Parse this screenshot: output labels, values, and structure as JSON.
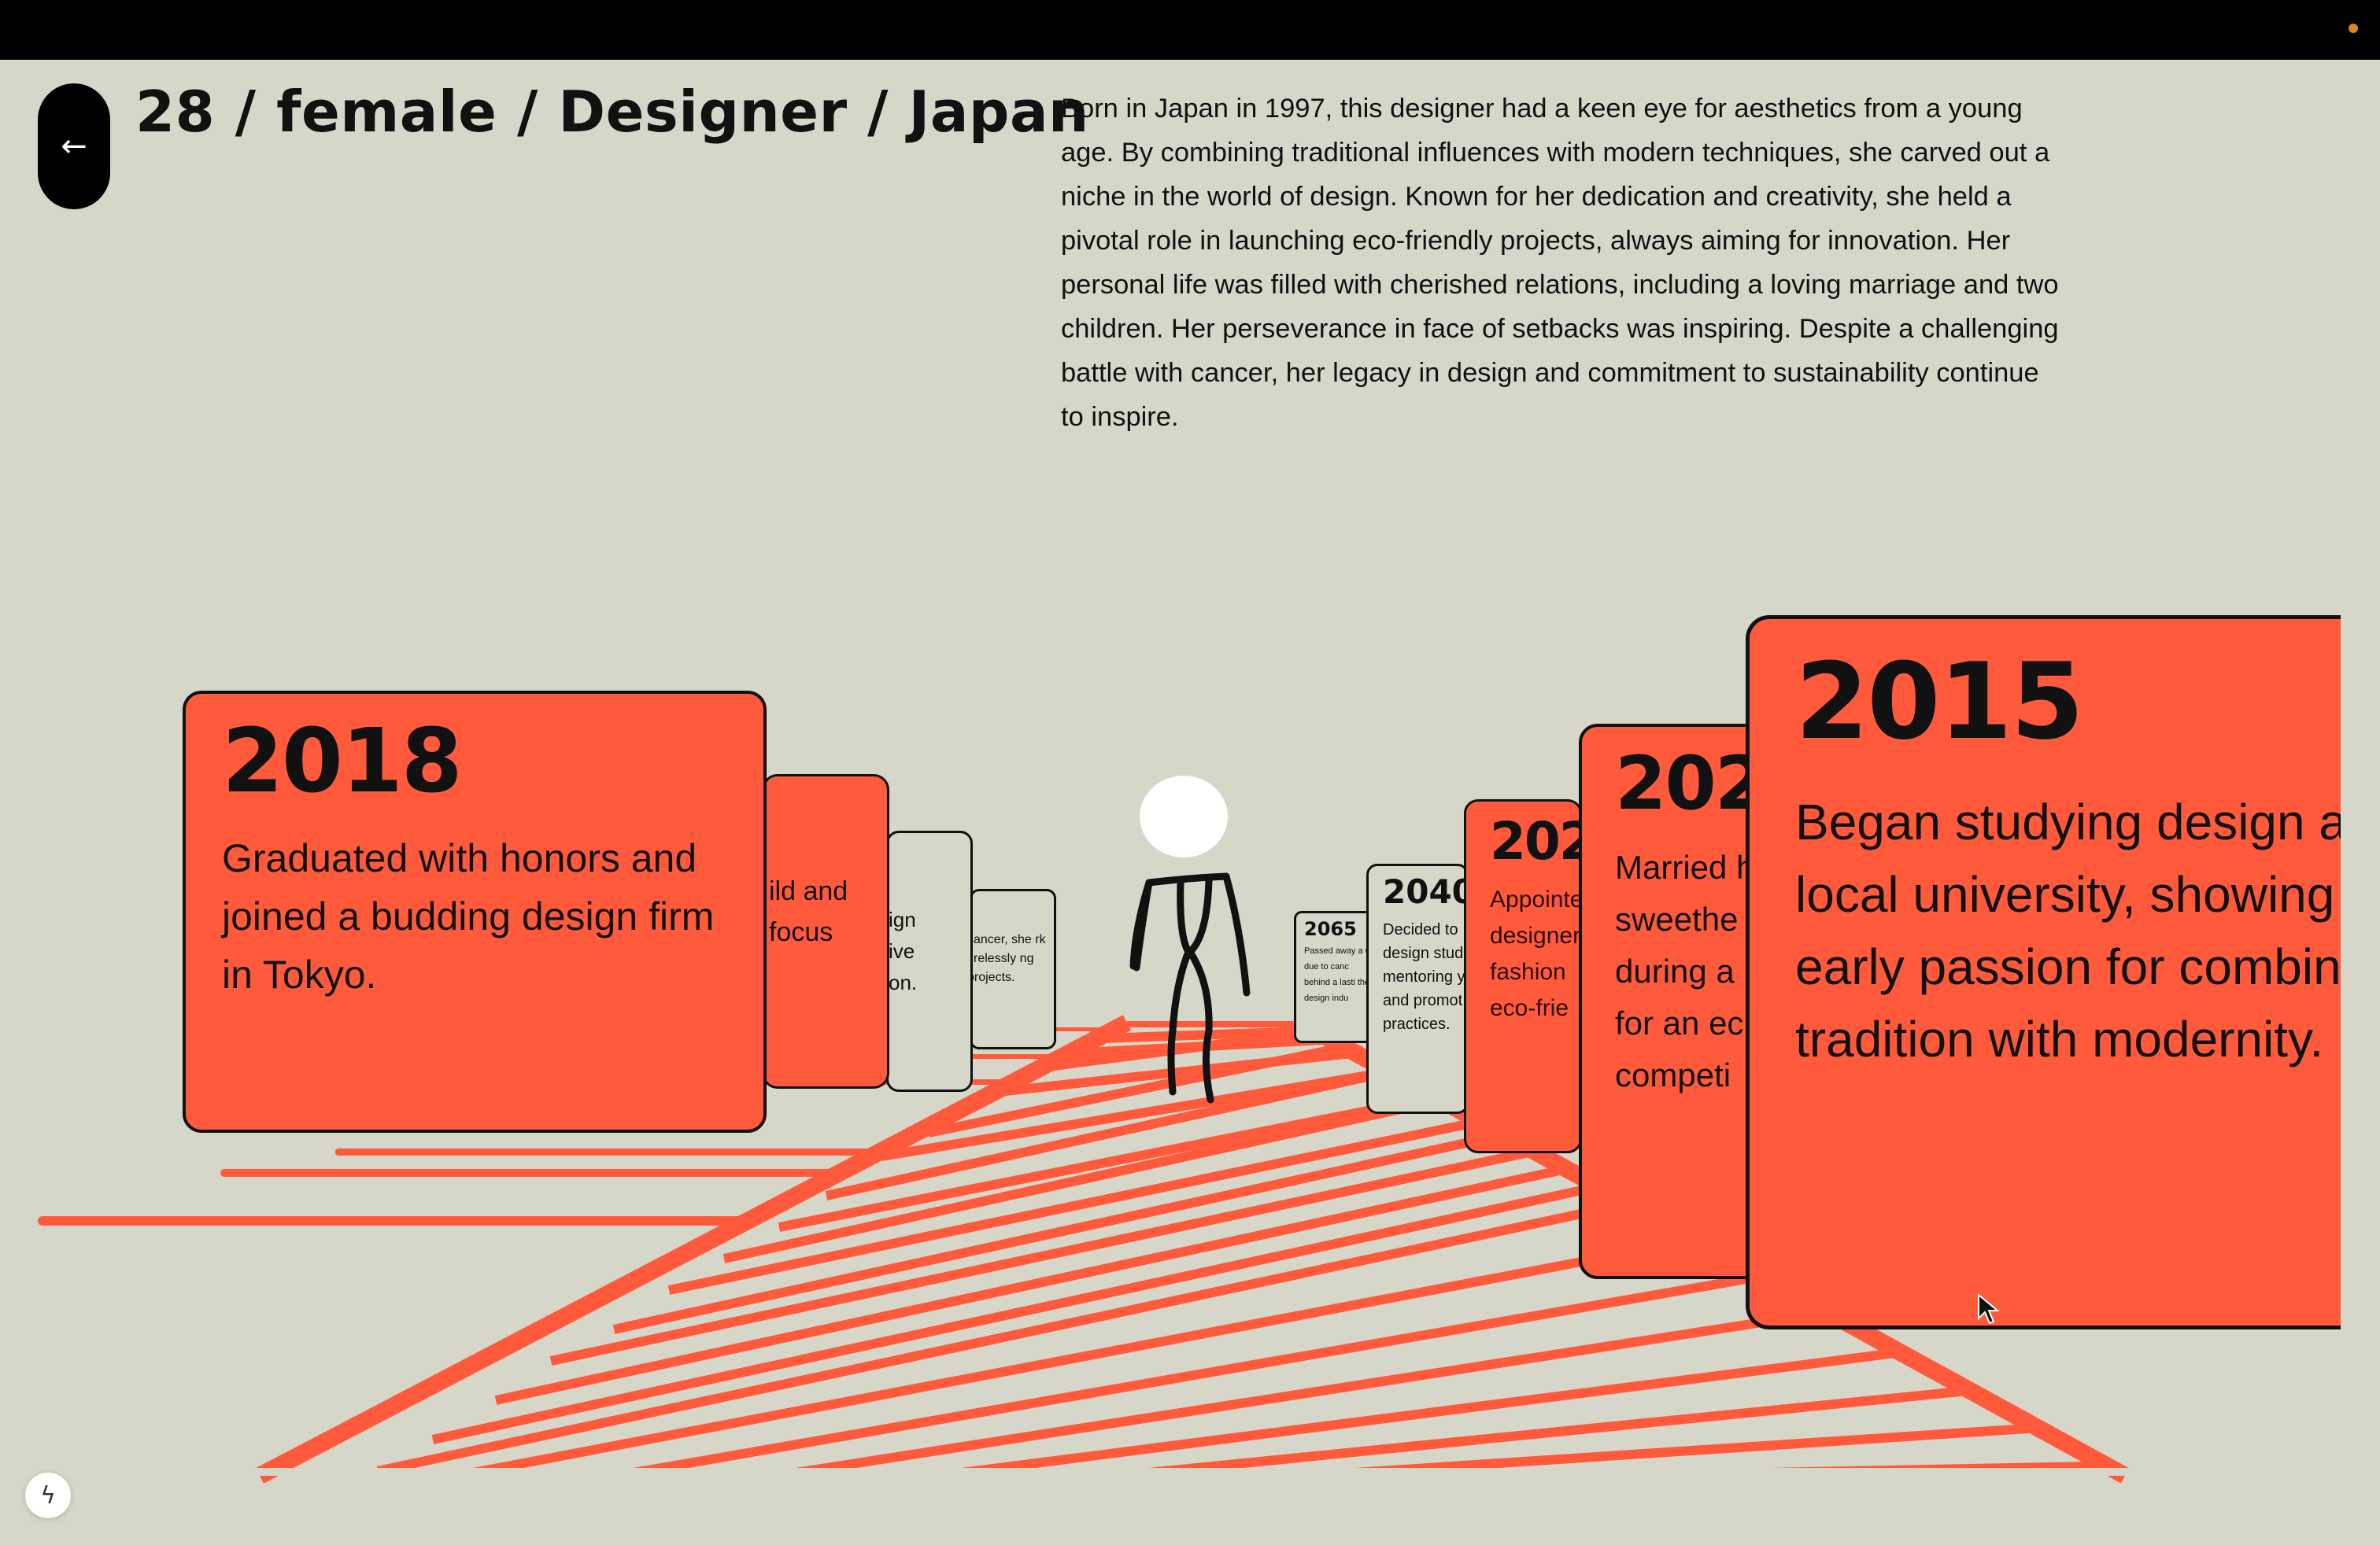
{
  "header": {
    "back_icon": "arrow-left-icon",
    "back_glyph": "←",
    "title": "28 / female / Designer / Japan"
  },
  "bio": "Born in Japan in 1997, this designer had a keen eye for aesthetics from a young age. By combining traditional influences with modern techniques, she carved out a niche in the world of design. Known for her dedication and creativity, she held a pivotal role in launching eco-friendly projects, always aiming for innovation. Her personal life was filled with cherished relations, including a loving marriage and two children. Her perseverance in face of setbacks was inspiring. Despite a challenging battle with cancer, her legacy in design and commitment to sustainability continue to inspire.",
  "timeline": {
    "left": [
      {
        "year": "2018",
        "text": "Graduated with honors and joined a budding design firm in Tokyo."
      },
      {
        "year": "",
        "text": "ild and focus"
      },
      {
        "year": "",
        "text": "ign ive on."
      },
      {
        "year": "",
        "text": "cancer, she rk tirelessly ng projects."
      }
    ],
    "right": [
      {
        "year": "2065",
        "text": "Passed away a 68 due to canc behind a lasti the design indu"
      },
      {
        "year": "2040",
        "text": "Decided to design stud mentoring y and promot practices."
      },
      {
        "year": "202",
        "text": "Appointe designer fashion eco-frie"
      },
      {
        "year": "202",
        "text": "Married h sweethe during a for an ec competi"
      },
      {
        "year": "2015",
        "text": "Began studying design at local university, showing early passion for combini tradition with modernity."
      }
    ]
  },
  "footer": {
    "badge_icon": "lightning-icon",
    "badge_glyph": "ϟ"
  },
  "colors": {
    "background": "#d6d6c9",
    "accent": "#ff5a3c",
    "ink": "#111111"
  }
}
